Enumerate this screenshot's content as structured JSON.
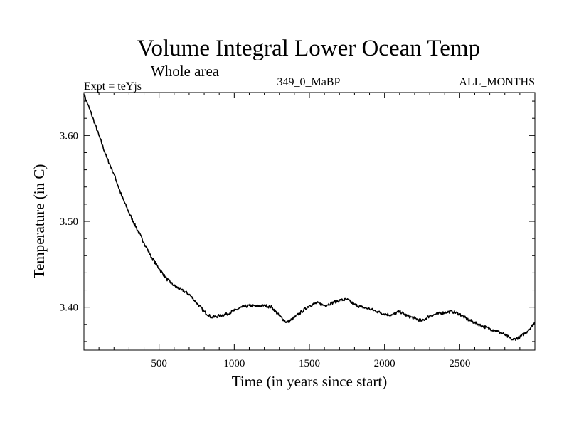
{
  "chart_data": {
    "type": "line",
    "title": "Volume Integral Lower Ocean Temp",
    "subtitle": "Whole area",
    "header_left": "Expt = teYjs",
    "header_center": "349_0_MaBP",
    "header_right": "ALL_MONTHS",
    "xlabel": "Time (in years since start)",
    "ylabel": "Temperature (in C)",
    "xlim": [
      0,
      3000
    ],
    "ylim": [
      3.35,
      3.65
    ],
    "x_ticks": [
      500,
      1000,
      1500,
      2000,
      2500
    ],
    "x_tick_labels": [
      "500",
      "1000",
      "1500",
      "2000",
      "2500"
    ],
    "y_ticks": [
      3.4,
      3.5,
      3.6
    ],
    "y_tick_labels": [
      "3.40",
      "3.50",
      "3.60"
    ],
    "grid": false,
    "series": [
      {
        "name": "teYjs",
        "x": [
          0,
          50,
          100,
          150,
          200,
          250,
          300,
          350,
          400,
          450,
          500,
          550,
          600,
          650,
          700,
          750,
          800,
          850,
          900,
          950,
          1000,
          1050,
          1100,
          1150,
          1200,
          1250,
          1300,
          1350,
          1400,
          1450,
          1500,
          1550,
          1600,
          1650,
          1700,
          1750,
          1800,
          1850,
          1900,
          1950,
          2000,
          2050,
          2100,
          2150,
          2200,
          2250,
          2300,
          2350,
          2400,
          2450,
          2500,
          2550,
          2600,
          2650,
          2700,
          2750,
          2800,
          2850,
          2900,
          2950,
          3000
        ],
        "values": [
          3.648,
          3.625,
          3.6,
          3.575,
          3.555,
          3.53,
          3.51,
          3.492,
          3.475,
          3.458,
          3.445,
          3.433,
          3.425,
          3.42,
          3.415,
          3.405,
          3.395,
          3.388,
          3.39,
          3.392,
          3.396,
          3.4,
          3.402,
          3.401,
          3.402,
          3.4,
          3.39,
          3.382,
          3.388,
          3.395,
          3.402,
          3.405,
          3.402,
          3.405,
          3.408,
          3.409,
          3.403,
          3.4,
          3.398,
          3.395,
          3.392,
          3.391,
          3.395,
          3.39,
          3.387,
          3.384,
          3.39,
          3.392,
          3.394,
          3.395,
          3.392,
          3.386,
          3.382,
          3.378,
          3.375,
          3.372,
          3.368,
          3.362,
          3.365,
          3.372,
          3.382
        ]
      }
    ]
  }
}
